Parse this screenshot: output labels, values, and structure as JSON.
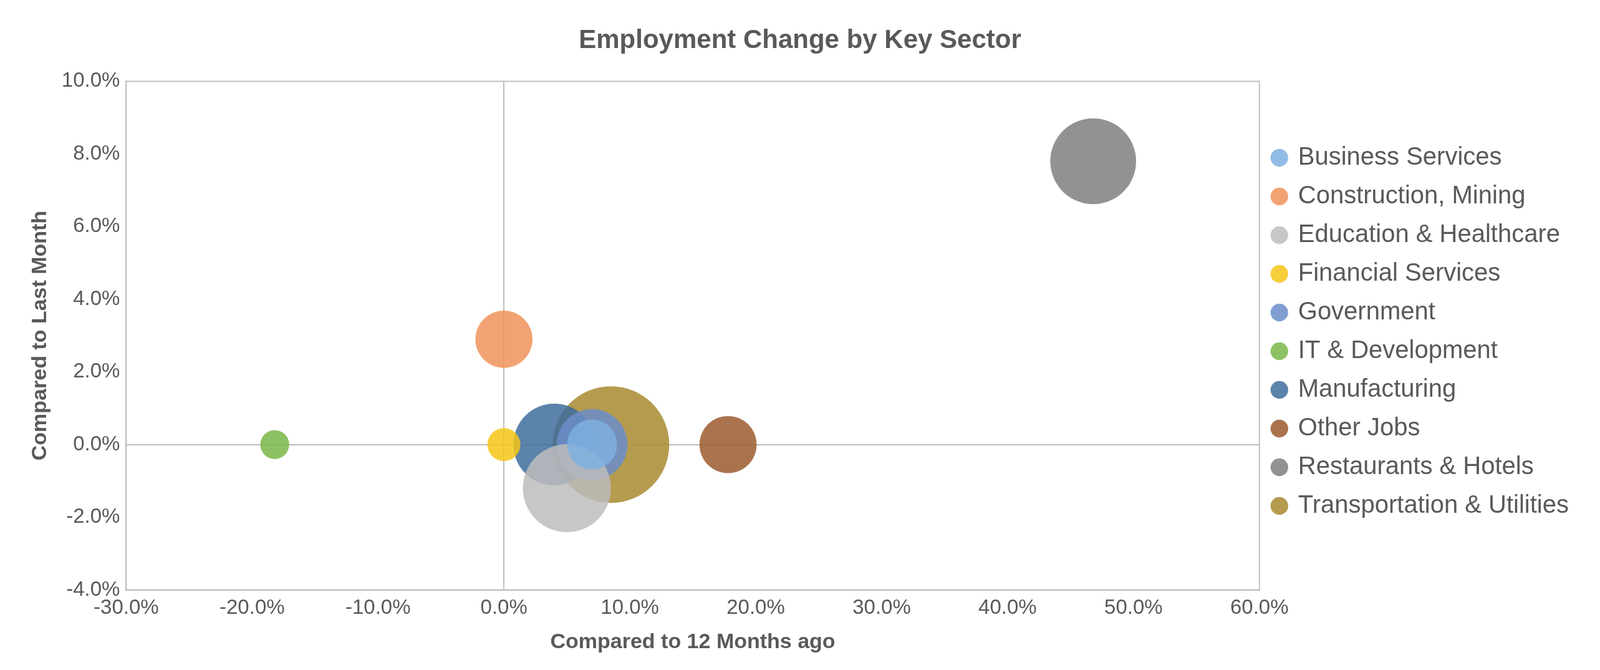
{
  "chart_data": {
    "type": "bubble",
    "title": "Employment Change by Key Sector",
    "x_label": "Compared to 12 Months ago",
    "y_label": "Compared to Last Month",
    "xlim": [
      -30,
      60
    ],
    "xticks": [
      {
        "value": -30,
        "label": "-30.0%"
      },
      {
        "value": -20,
        "label": "-20.0%"
      },
      {
        "value": -10,
        "label": "-10.0%"
      },
      {
        "value": 0,
        "label": "0.0%"
      },
      {
        "value": 10,
        "label": "10.0%"
      },
      {
        "value": 20,
        "label": "20.0%"
      },
      {
        "value": 30,
        "label": "30.0%"
      },
      {
        "value": 40,
        "label": "40.0%"
      },
      {
        "value": 50,
        "label": "50.0%"
      },
      {
        "value": 60,
        "label": "60.0%"
      }
    ],
    "ylim": [
      -4,
      10
    ],
    "yticks": [
      {
        "value": -4,
        "label": "-4.0%"
      },
      {
        "value": -2,
        "label": "-2.0%"
      },
      {
        "value": 0,
        "label": "0.0%"
      },
      {
        "value": 2,
        "label": "2.0%"
      },
      {
        "value": 4,
        "label": "4.0%"
      },
      {
        "value": 6,
        "label": "6.0%"
      },
      {
        "value": 8,
        "label": "8.0%"
      },
      {
        "value": 10,
        "label": "10.0%"
      }
    ],
    "grid": false,
    "legend": "right",
    "series": [
      {
        "name": "Business Services",
        "color": "#7eb0e0",
        "x": [
          7
        ],
        "values": [
          0
        ],
        "size": [
          6
        ]
      },
      {
        "name": "Construction, Mining",
        "color": "#f0935a",
        "x": [
          0
        ],
        "values": [
          2.9
        ],
        "size": [
          7.8
        ]
      },
      {
        "name": "Education & Healthcare",
        "color": "#bdbdbd",
        "x": [
          5
        ],
        "values": [
          -1.2
        ],
        "size": [
          18.5
        ]
      },
      {
        "name": "Financial Services",
        "color": "#f5c518",
        "x": [
          0
        ],
        "values": [
          0
        ],
        "size": [
          2.6
        ]
      },
      {
        "name": "Government",
        "color": "#6c8ecb",
        "x": [
          7
        ],
        "values": [
          0
        ],
        "size": [
          12
        ]
      },
      {
        "name": "IT & Development",
        "color": "#7ab648",
        "x": [
          -18.2
        ],
        "values": [
          0
        ],
        "size": [
          2
        ]
      },
      {
        "name": "Manufacturing",
        "color": "#3e6d9c",
        "x": [
          4
        ],
        "values": [
          0
        ],
        "size": [
          16
        ]
      },
      {
        "name": "Other Jobs",
        "color": "#9c5a2e",
        "x": [
          17.8
        ],
        "values": [
          0
        ],
        "size": [
          7.8
        ]
      },
      {
        "name": "Restaurants & Hotels",
        "color": "#7f7f7f",
        "x": [
          46.8
        ],
        "values": [
          7.8
        ],
        "size": [
          17.6
        ]
      },
      {
        "name": "Transportation & Utilities",
        "color": "#a8892f",
        "x": [
          8.5
        ],
        "values": [
          0
        ],
        "size": [
          32.5
        ]
      }
    ]
  }
}
